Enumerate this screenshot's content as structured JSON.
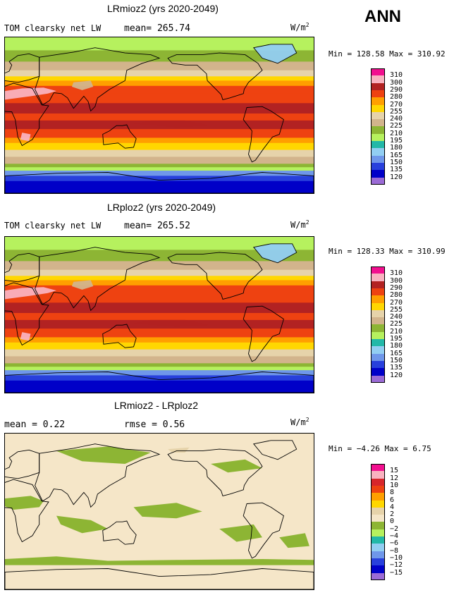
{
  "season": "ANN",
  "panels": [
    {
      "title": "LRmioz2 (yrs 2020-2049)",
      "left_label": "TOM clearsky net LW",
      "mean_label": "mean= 265.74",
      "units": "W/m",
      "units_sup": "2",
      "minmax": "Min = 128.58 Max = 310.92",
      "levels": [
        "310",
        "300",
        "290",
        "280",
        "270",
        "255",
        "240",
        "225",
        "210",
        "195",
        "180",
        "165",
        "150",
        "135",
        "120"
      ],
      "colors": [
        "#f20f8f",
        "#f9b2c0",
        "#b22222",
        "#ee4211",
        "#ff9f00",
        "#ffd700",
        "#e6d3aa",
        "#d2b48c",
        "#8db534",
        "#b6f15e",
        "#22b8a8",
        "#92cef2",
        "#6f97ea",
        "#2840dc",
        "#0000c8",
        "#9b6bd6"
      ],
      "type": "full"
    },
    {
      "title": "LRploz2 (yrs 2020-2049)",
      "left_label": "TOM clearsky net LW",
      "mean_label": "mean= 265.52",
      "units": "W/m",
      "units_sup": "2",
      "minmax": "Min = 128.33 Max = 310.99",
      "levels": [
        "310",
        "300",
        "290",
        "280",
        "270",
        "255",
        "240",
        "225",
        "210",
        "195",
        "180",
        "165",
        "150",
        "135",
        "120"
      ],
      "colors": [
        "#f20f8f",
        "#f9b2c0",
        "#b22222",
        "#ee4211",
        "#ff9f00",
        "#ffd700",
        "#e6d3aa",
        "#d2b48c",
        "#8db534",
        "#b6f15e",
        "#22b8a8",
        "#92cef2",
        "#6f97ea",
        "#2840dc",
        "#0000c8",
        "#9b6bd6"
      ],
      "type": "full"
    },
    {
      "title": "LRmioz2 - LRploz2",
      "left_label": "mean =   0.22",
      "mean_label": "rmse =   0.56",
      "units": "W/m",
      "units_sup": "2",
      "minmax": "Min = −4.26 Max =   6.75",
      "levels": [
        "15",
        "12",
        "10",
        "8",
        "6",
        "4",
        "2",
        "0",
        "−2",
        "−4",
        "−6",
        "−8",
        "−10",
        "−12",
        "−15"
      ],
      "colors": [
        "#f20f8f",
        "#f9b2c0",
        "#d7262b",
        "#ee4211",
        "#ff9f00",
        "#ffd700",
        "#e6d3aa",
        "#f5e6c8",
        "#8db534",
        "#b6f15e",
        "#22b8a8",
        "#92cef2",
        "#6f97ea",
        "#2840dc",
        "#0000c8",
        "#9b6bd6"
      ],
      "type": "diff"
    }
  ]
}
